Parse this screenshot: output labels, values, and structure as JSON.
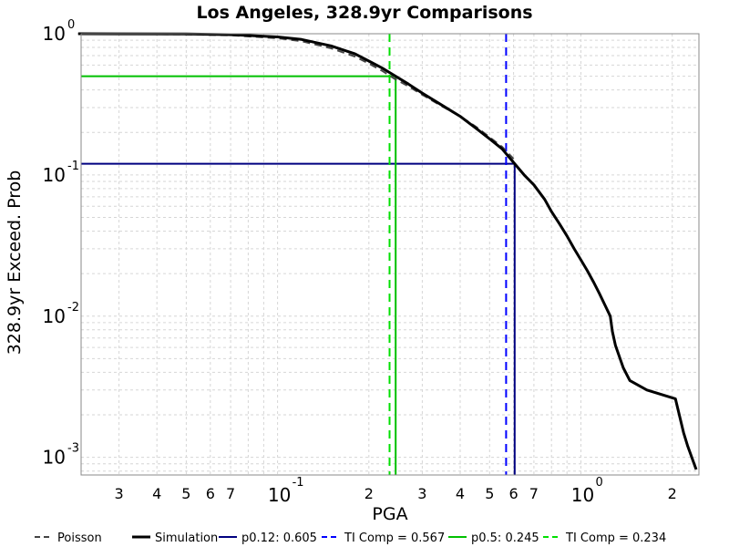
{
  "chart_data": {
    "type": "line",
    "title": "Los Angeles, 328.9yr Comparisons",
    "xlabel": "PGA",
    "ylabel": "328.9yr Exceed. Prob",
    "xscale": "log",
    "yscale": "log",
    "xlim": [
      0.0225,
      2.45
    ],
    "ylim": [
      0.00075,
      1.0
    ],
    "grid": true,
    "x_ticks": [
      {
        "value": 0.03,
        "label": "3"
      },
      {
        "value": 0.04,
        "label": "4"
      },
      {
        "value": 0.05,
        "label": "5"
      },
      {
        "value": 0.06,
        "label": "6"
      },
      {
        "value": 0.07,
        "label": "7"
      },
      {
        "value": 0.1,
        "base": "10",
        "exp": "-1"
      },
      {
        "value": 0.2,
        "label": "2"
      },
      {
        "value": 0.3,
        "label": "3"
      },
      {
        "value": 0.4,
        "label": "4"
      },
      {
        "value": 0.5,
        "label": "5"
      },
      {
        "value": 0.6,
        "label": "6"
      },
      {
        "value": 0.7,
        "label": "7"
      },
      {
        "value": 1.0,
        "base": "10",
        "exp": "0"
      },
      {
        "value": 2.0,
        "label": "2"
      }
    ],
    "y_ticks": [
      {
        "value": 1.0,
        "base": "10",
        "exp": "0"
      },
      {
        "value": 0.1,
        "base": "10",
        "exp": "-1"
      },
      {
        "value": 0.01,
        "base": "10",
        "exp": "-2"
      },
      {
        "value": 0.001,
        "base": "10",
        "exp": "-3"
      }
    ],
    "legend": {
      "position": "bottom",
      "entries": [
        {
          "label": "Poisson",
          "series": "poisson"
        },
        {
          "label": "Simulation",
          "series": "simulation"
        },
        {
          "label": "p0.12: 0.605",
          "series": "p012"
        },
        {
          "label": "TI Comp = 0.567",
          "series": "ti0567"
        },
        {
          "label": "p0.5: 0.245",
          "series": "p05"
        },
        {
          "label": "TI Comp = 0.234",
          "series": "ti0234"
        }
      ]
    },
    "series": [
      {
        "name": "Simulation",
        "key": "simulation",
        "style": "solid",
        "color": "#000000",
        "width": 3,
        "points": [
          [
            0.022,
            1.0
          ],
          [
            0.05,
            0.995
          ],
          [
            0.07,
            0.985
          ],
          [
            0.1,
            0.95
          ],
          [
            0.12,
            0.91
          ],
          [
            0.15,
            0.82
          ],
          [
            0.18,
            0.72
          ],
          [
            0.2,
            0.64
          ],
          [
            0.22,
            0.575
          ],
          [
            0.245,
            0.5
          ],
          [
            0.27,
            0.44
          ],
          [
            0.3,
            0.38
          ],
          [
            0.35,
            0.31
          ],
          [
            0.4,
            0.26
          ],
          [
            0.45,
            0.215
          ],
          [
            0.5,
            0.18
          ],
          [
            0.55,
            0.153
          ],
          [
            0.605,
            0.12
          ],
          [
            0.65,
            0.1
          ],
          [
            0.7,
            0.085
          ],
          [
            0.76,
            0.067
          ],
          [
            0.8,
            0.055
          ],
          [
            0.85,
            0.045
          ],
          [
            0.9,
            0.037
          ],
          [
            0.95,
            0.03
          ],
          [
            1.0,
            0.025
          ],
          [
            1.05,
            0.021
          ],
          [
            1.1,
            0.0175
          ],
          [
            1.15,
            0.0145
          ],
          [
            1.2,
            0.012
          ],
          [
            1.25,
            0.01
          ],
          [
            1.27,
            0.0078
          ],
          [
            1.3,
            0.0062
          ],
          [
            1.38,
            0.0043
          ],
          [
            1.45,
            0.0035
          ],
          [
            1.65,
            0.003
          ],
          [
            2.05,
            0.0026
          ],
          [
            2.18,
            0.0015
          ],
          [
            2.25,
            0.0012
          ],
          [
            2.4,
            0.00082
          ]
        ]
      },
      {
        "name": "Poisson",
        "key": "poisson",
        "style": "dashed",
        "color": "#444444",
        "width": 2,
        "points": [
          [
            0.022,
            0.998
          ],
          [
            0.05,
            0.99
          ],
          [
            0.07,
            0.975
          ],
          [
            0.1,
            0.93
          ],
          [
            0.12,
            0.885
          ],
          [
            0.15,
            0.79
          ],
          [
            0.18,
            0.69
          ],
          [
            0.2,
            0.615
          ],
          [
            0.22,
            0.55
          ],
          [
            0.245,
            0.475
          ],
          [
            0.27,
            0.425
          ],
          [
            0.3,
            0.37
          ],
          [
            0.35,
            0.305
          ],
          [
            0.4,
            0.26
          ],
          [
            0.45,
            0.22
          ],
          [
            0.5,
            0.185
          ],
          [
            0.55,
            0.158
          ],
          [
            0.6,
            0.13
          ]
        ]
      },
      {
        "name": "p0.12: 0.605",
        "key": "p012",
        "style": "solid",
        "color": "#000080",
        "width": 2,
        "points": [
          [
            0.0225,
            0.12
          ],
          [
            0.605,
            0.12
          ],
          [
            0.605,
            0.00075
          ]
        ]
      },
      {
        "name": "TI Comp = 0.567",
        "key": "ti0567",
        "style": "dashed",
        "color": "#0000ff",
        "width": 2,
        "points": [
          [
            0.567,
            1.0
          ],
          [
            0.567,
            0.00075
          ]
        ]
      },
      {
        "name": "p0.5: 0.245",
        "key": "p05",
        "style": "solid",
        "color": "#00c000",
        "width": 2,
        "points": [
          [
            0.0225,
            0.5
          ],
          [
            0.245,
            0.5
          ],
          [
            0.245,
            0.00075
          ]
        ]
      },
      {
        "name": "TI Comp = 0.234",
        "key": "ti0234",
        "style": "dashed",
        "color": "#00e000",
        "width": 2,
        "points": [
          [
            0.234,
            1.0
          ],
          [
            0.234,
            0.00075
          ]
        ]
      }
    ]
  }
}
